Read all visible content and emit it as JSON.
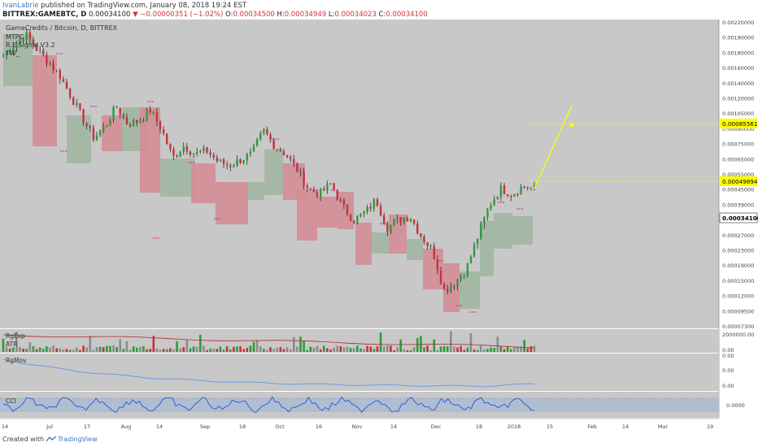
{
  "header": {
    "author": "IvanLabrie",
    "published": "published on TradingView.com, January 08, 2018 19:24 EST",
    "symbol": "BITTREX:GAMEBTC, D",
    "last": "0.00034100",
    "change": "−0.00000351 (−1.02%)",
    "o_label": "O:",
    "o": "0.00034500",
    "h_label": "H:",
    "h": "0.00034949",
    "l_label": "L:",
    "l": "0.00034023",
    "c_label": "C:",
    "c": "0.00034100"
  },
  "chart_data": {
    "type": "candlestick",
    "title": "GameCredits / Bitcoin, D, BITTREX",
    "indicators_main": [
      "MTPC",
      "R.E.Signal V3.2",
      "TW_"
    ],
    "y_ticks": [
      "0.00220000",
      "0.00190000",
      "0.00180000",
      "0.00160000",
      "0.00140000",
      "0.00120000",
      "0.00105000",
      "0.00090000",
      "0.00075000",
      "0.00065000",
      "0.00055000",
      "0.00045000",
      "0.00039000",
      "0.00033000",
      "0.00027000",
      "0.00023000",
      "0.00019000",
      "0.00015000",
      "0.00012000",
      "0.00009500",
      "0.00007300"
    ],
    "price_labels": [
      {
        "text": "0.00085561",
        "style": "target"
      },
      {
        "text": "0.00049894",
        "style": "target"
      },
      {
        "text": "0.00034100",
        "style": "last"
      }
    ],
    "x_ticks": [
      "14",
      "Jul",
      "17",
      "Aug",
      "14",
      "Sep",
      "18",
      "Oct",
      "16",
      "Nov",
      "14",
      "Dec",
      "18",
      "2018",
      "15",
      "Feb",
      "14",
      "Mar",
      "19"
    ],
    "close_path": [
      0.0015,
      0.0017,
      0.0019,
      0.0016,
      0.0014,
      0.0012,
      0.00095,
      0.00075,
      0.0006,
      0.00068,
      0.00085,
      0.0007,
      0.00072,
      0.00082,
      0.00066,
      0.00048,
      0.00055,
      0.0005,
      0.00052,
      0.00046,
      0.00044,
      0.00047,
      0.0005,
      0.00065,
      0.00055,
      0.0005,
      0.00042,
      0.00034,
      0.00032,
      0.00036,
      0.00028,
      0.00024,
      0.00026,
      0.0003,
      0.00022,
      0.00024,
      0.00025,
      0.0002,
      0.00017,
      0.00011,
      0.00012,
      0.00014,
      0.0002,
      0.00028,
      0.00034,
      0.00032,
      0.00035,
      0.00034
    ],
    "projection": {
      "from": 0.000341,
      "to": 0.00085561,
      "steps": 12
    },
    "panes": [
      {
        "name": "RgExp",
        "sub": "ATR",
        "ticks": [
          "2000000.00",
          "0.00"
        ]
      },
      {
        "name": "RgMov",
        "ticks": [
          "0.00",
          "0.00",
          "0.00"
        ]
      },
      {
        "name": "CCI",
        "ticks": [
          "0.0000"
        ]
      }
    ],
    "colors": {
      "bg": "#c8c8c8",
      "up": "#2e9c3c",
      "down": "#c8323c",
      "box_red": "#d48a93",
      "box_green": "#9fb59f",
      "target": "#ffff00",
      "rgmov_line": "#6c9be0",
      "cci_line": "#2a65d4"
    }
  },
  "footer": {
    "created_with": "Created with",
    "brand": "TradingView"
  }
}
